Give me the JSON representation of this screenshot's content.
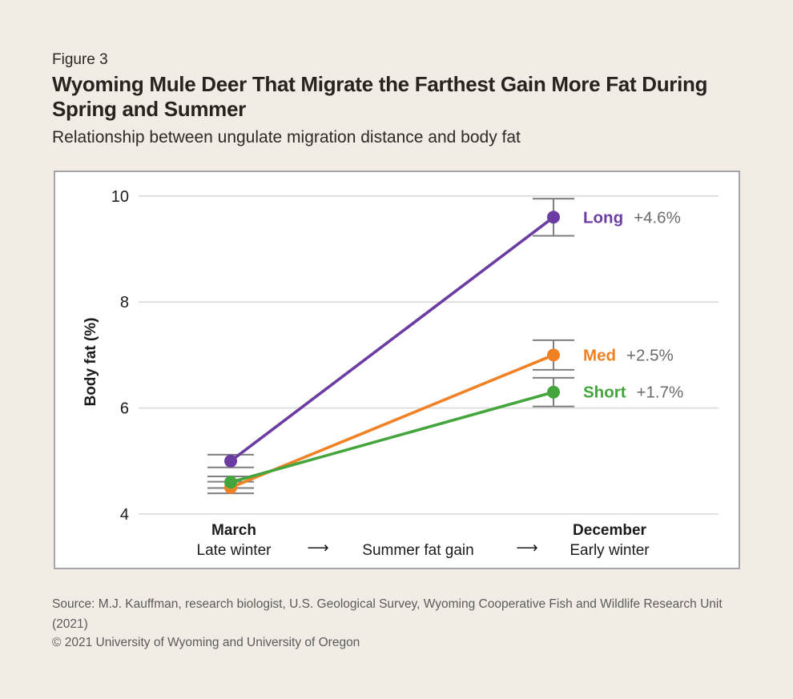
{
  "header": {
    "figure_label": "Figure 3",
    "title": "Wyoming Mule Deer That Migrate the Farthest Gain More Fat During Spring and Summer",
    "subtitle": "Relationship between ungulate migration distance and body fat"
  },
  "footer": {
    "source_line1": "Source: M.J. Kauffman, research biologist, U.S. Geological Survey, Wyoming Cooperative Fish and Wildlife Research Unit",
    "source_line2": "(2021)",
    "copyright": "© 2021 University of Wyoming and University of Oregon"
  },
  "icons": {
    "arrow_right": "⟶"
  },
  "colors": {
    "background": "#f1ece4",
    "panel_border": "#a6a3ab",
    "grid": "#d9d9d9",
    "error_bar": "#7e7e7e",
    "tick_text": "#1d1b19",
    "change_text": "#6b6b6b"
  },
  "chart_data": {
    "type": "line",
    "title": "Wyoming Mule Deer That Migrate the Farthest Gain More Fat During Spring and Summer",
    "subtitle": "Relationship between ungulate migration distance and body fat",
    "ylabel": "Body fat (%)",
    "yticks": [
      4,
      6,
      8,
      10
    ],
    "ylim": [
      3.7,
      10.45
    ],
    "grid": true,
    "legend_position": "right-of-last-point",
    "x_categories": [
      "March",
      "December"
    ],
    "x_sub_labels": [
      "Late winter",
      "Early winter"
    ],
    "x_middle_label": "Summer fat gain",
    "series": [
      {
        "name": "Long",
        "color": "#6b3ca1",
        "values": [
          5.0,
          9.6
        ],
        "errors": [
          0.12,
          0.35
        ],
        "change_label": "+4.6%"
      },
      {
        "name": "Med",
        "color": "#f08124",
        "values": [
          4.5,
          7.0
        ],
        "errors": [
          0.11,
          0.28
        ],
        "change_label": "+2.5%"
      },
      {
        "name": "Short",
        "color": "#44a53c",
        "values": [
          4.6,
          6.3
        ],
        "errors": [
          0.11,
          0.27
        ],
        "change_label": "+1.7%"
      }
    ]
  }
}
